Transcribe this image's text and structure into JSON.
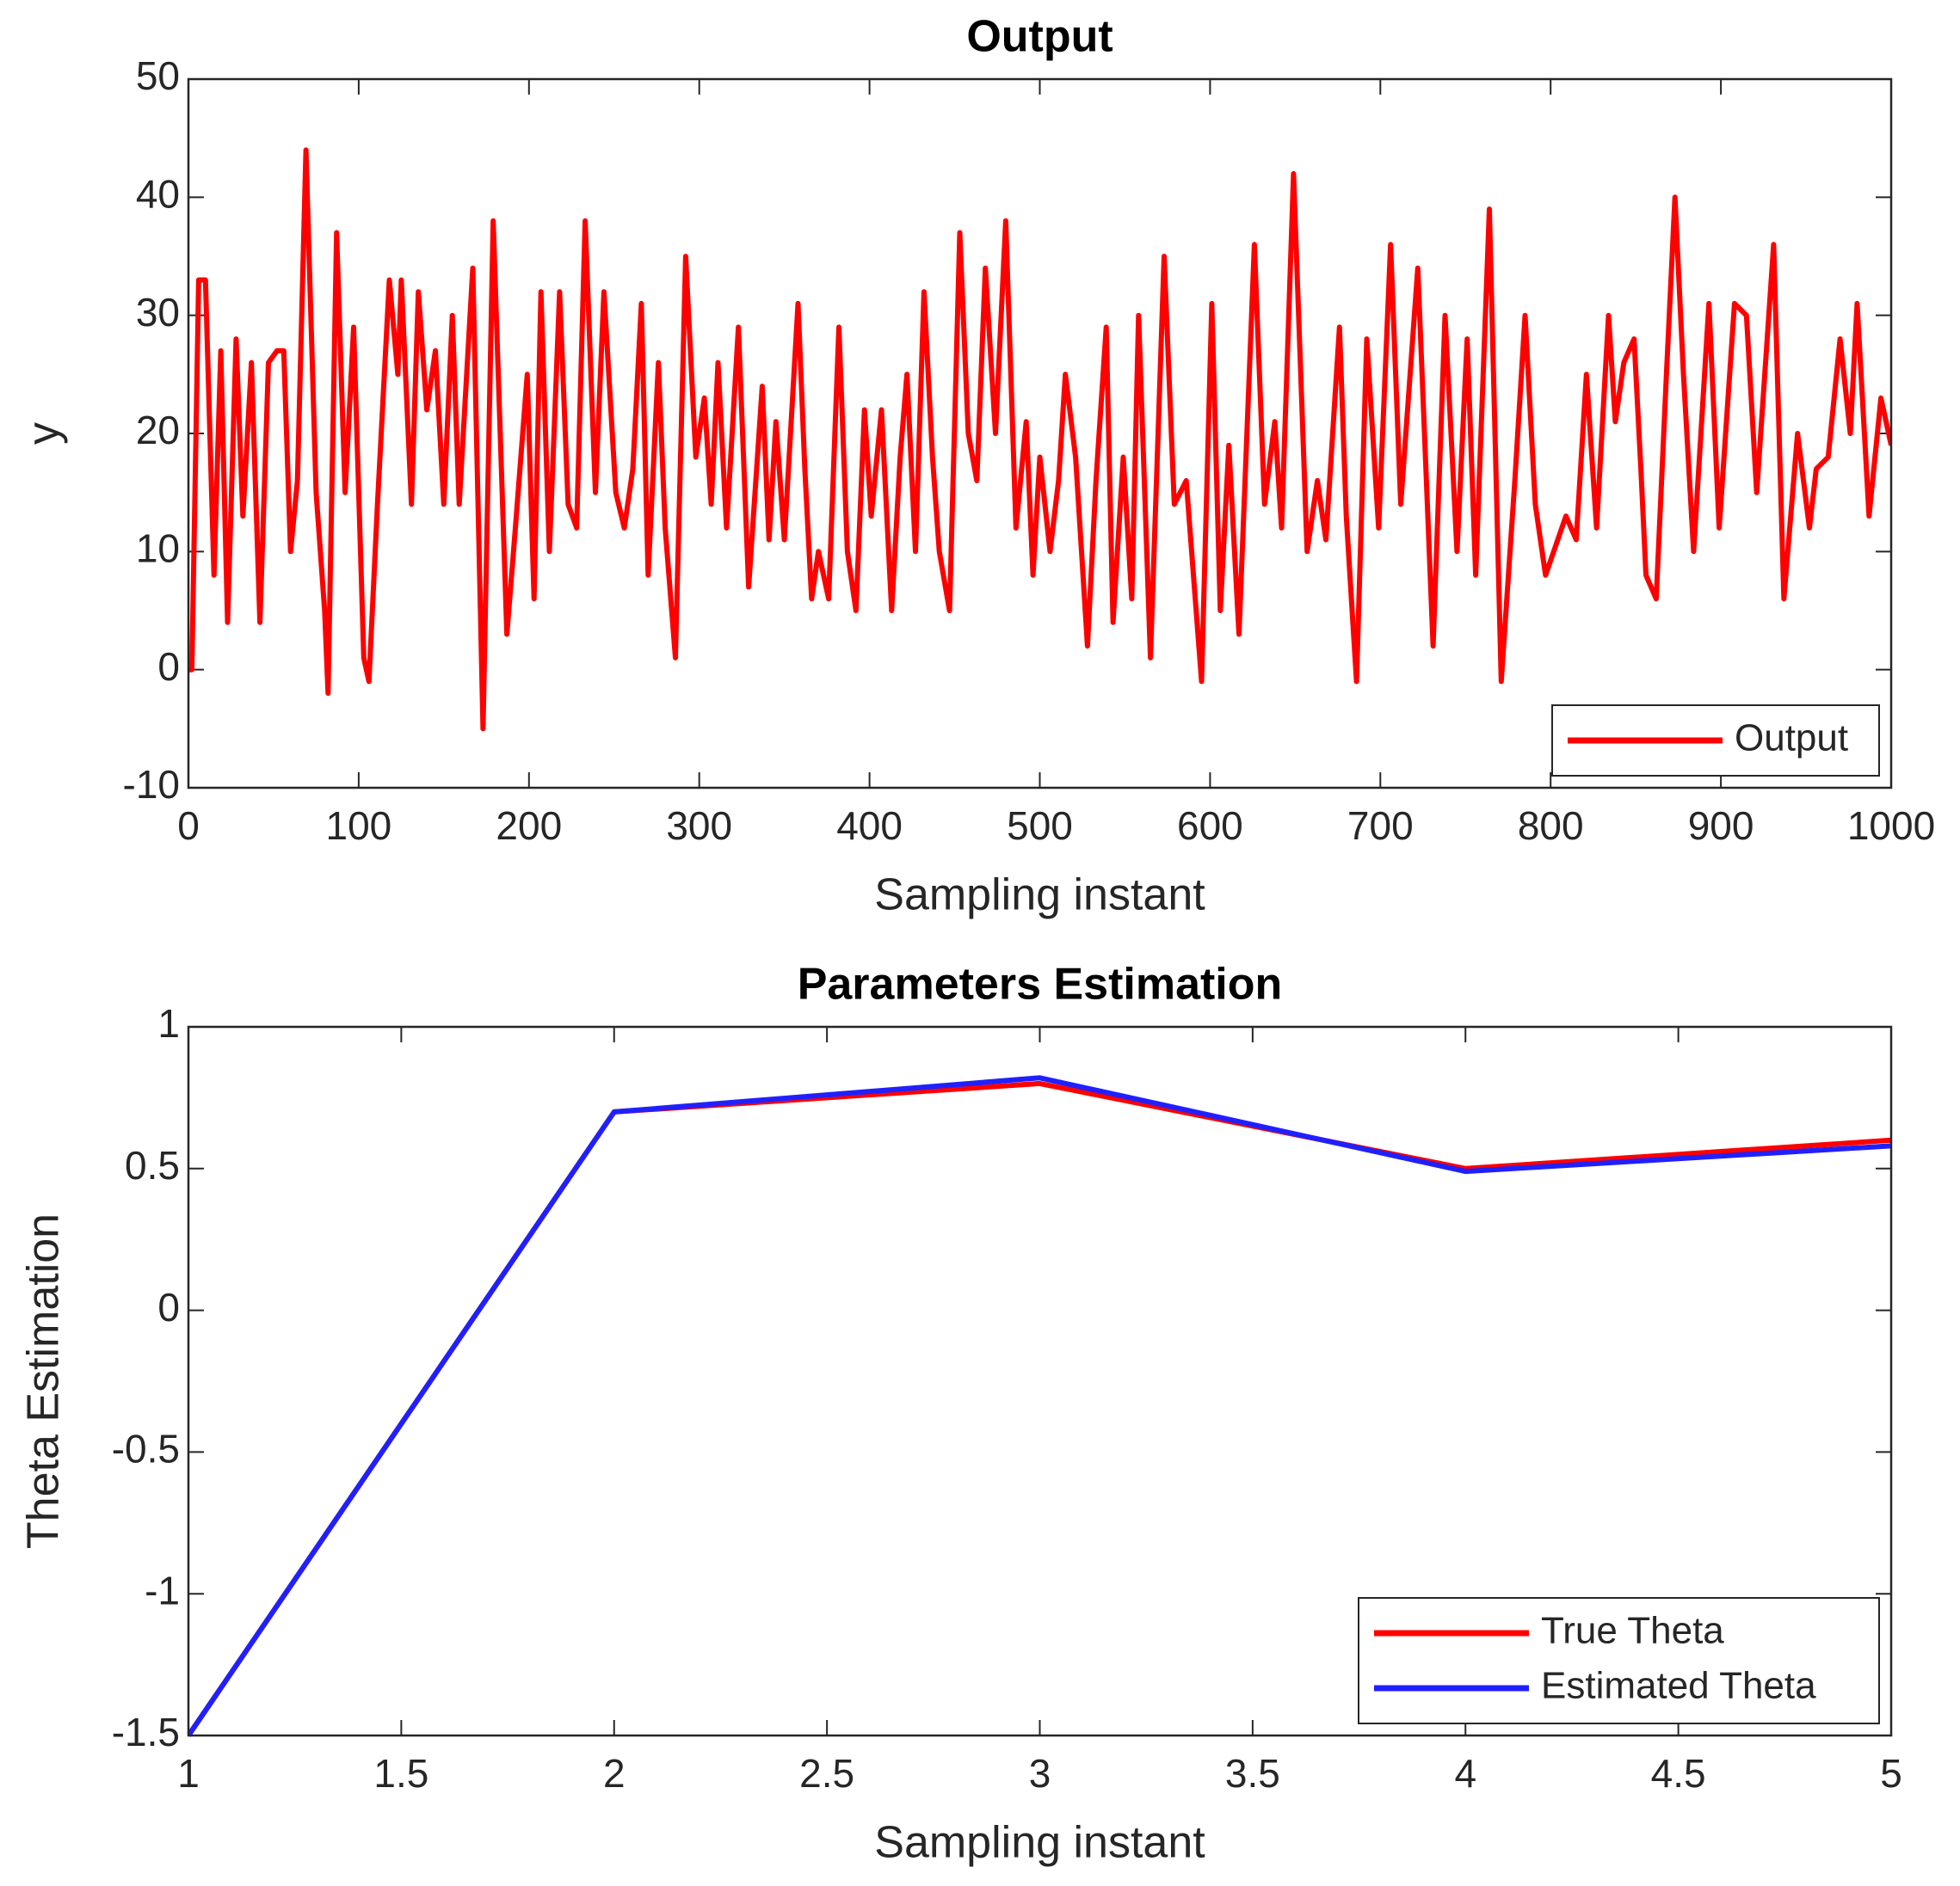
{
  "chart_data": [
    {
      "type": "line",
      "title": "Output",
      "xlabel": "Sampling instant",
      "ylabel": "y",
      "xlim": [
        0,
        1000
      ],
      "xticks": [
        0,
        100,
        200,
        300,
        400,
        500,
        600,
        700,
        800,
        900,
        1000
      ],
      "ylim": [
        -10,
        50
      ],
      "yticks": [
        -10,
        0,
        10,
        20,
        30,
        40,
        50
      ],
      "legend": "lower right",
      "grid": false,
      "x": [
        0,
        2,
        6,
        10,
        15,
        19,
        23,
        28,
        32,
        37,
        42,
        47,
        52,
        56,
        60,
        64,
        69,
        75,
        80,
        82,
        87,
        92,
        97,
        103,
        106,
        111,
        118,
        123,
        125,
        131,
        135,
        140,
        145,
        150,
        155,
        159,
        167,
        173,
        179,
        187,
        192,
        199,
        203,
        207,
        212,
        218,
        223,
        228,
        233,
        239,
        244,
        251,
        256,
        261,
        266,
        270,
        276,
        280,
        286,
        292,
        298,
        303,
        307,
        311,
        316,
        323,
        329,
        337,
        341,
        345,
        350,
        358,
        362,
        366,
        370,
        376,
        382,
        387,
        392,
        397,
        401,
        407,
        413,
        418,
        422,
        427,
        432,
        437,
        441,
        447,
        453,
        458,
        463,
        468,
        474,
        480,
        486,
        492,
        496,
        500,
        506,
        511,
        515,
        521,
        528,
        533,
        539,
        543,
        549,
        554,
        558,
        565,
        573,
        579,
        586,
        595,
        601,
        606,
        611,
        617,
        626,
        632,
        638,
        642,
        649,
        657,
        663,
        668,
        676,
        680,
        686,
        692,
        699,
        706,
        712,
        722,
        731,
        738,
        745,
        751,
        756,
        764,
        771,
        779,
        785,
        791,
        797,
        809,
        815,
        821,
        827,
        834,
        838,
        843,
        849,
        853,
        856,
        862,
        868,
        873,
        878,
        884,
        893,
        899,
        908,
        915,
        921,
        931,
        937,
        945,
        952,
        956,
        963,
        970,
        976,
        980,
        987,
        994,
        1000
      ],
      "series": [
        {
          "name": "Output",
          "color": "#ff0000",
          "values": [
            0,
            0,
            33,
            33,
            8,
            27,
            4,
            28,
            13,
            26,
            4,
            26,
            27,
            27,
            10,
            16,
            44,
            15,
            5,
            -2,
            37,
            15,
            29,
            1,
            -1,
            14,
            33,
            25,
            33,
            14,
            32,
            22,
            27,
            14,
            30,
            14,
            34,
            -5,
            38,
            3,
            12,
            25,
            6,
            32,
            10,
            32,
            14,
            12,
            38,
            15,
            32,
            15,
            12,
            17,
            31,
            8,
            26,
            12,
            1,
            35,
            18,
            23,
            14,
            26,
            12,
            29,
            7,
            24,
            11,
            21,
            11,
            31,
            17,
            6,
            10,
            6,
            29,
            10,
            5,
            22,
            13,
            22,
            5,
            18,
            25,
            10,
            32,
            18,
            10,
            5,
            37,
            20,
            16,
            34,
            20,
            38,
            12,
            21,
            8,
            18,
            10,
            16,
            25,
            18,
            2,
            16,
            29,
            4,
            18,
            6,
            30,
            1,
            35,
            14,
            16,
            -1,
            31,
            5,
            19,
            3,
            36,
            14,
            21,
            12,
            42,
            10,
            16,
            11,
            29,
            13,
            -1,
            28,
            12,
            36,
            14,
            34,
            2,
            30,
            10,
            28,
            8,
            39,
            -1,
            16,
            30,
            14,
            8,
            13,
            11,
            25,
            12,
            30,
            21,
            26,
            28,
            17,
            8,
            6,
            25,
            40,
            25,
            10,
            31,
            12,
            31,
            30,
            15,
            36,
            6,
            20,
            12,
            17,
            18,
            28,
            20,
            31,
            13,
            23,
            19
          ]
        }
      ]
    },
    {
      "type": "line",
      "title": "Parameters Estimation",
      "xlabel": "Sampling instant",
      "ylabel": "Theta Estimation",
      "xlim": [
        1,
        5
      ],
      "xticks": [
        1,
        1.5,
        2,
        2.5,
        3,
        3.5,
        4,
        4.5,
        5
      ],
      "ylim": [
        -1.5,
        1
      ],
      "yticks": [
        -1.5,
        -1,
        -0.5,
        0,
        0.5,
        1
      ],
      "legend": "lower right",
      "grid": false,
      "x": [
        1,
        2,
        3,
        4,
        5
      ],
      "series": [
        {
          "name": "True Theta",
          "color": "#ff0000",
          "values": [
            -1.5,
            0.7,
            0.8,
            0.5,
            0.6
          ]
        },
        {
          "name": "Estimated Theta",
          "color": "#2020ff",
          "values": [
            -1.5,
            0.7,
            0.82,
            0.49,
            0.58
          ]
        }
      ]
    }
  ]
}
